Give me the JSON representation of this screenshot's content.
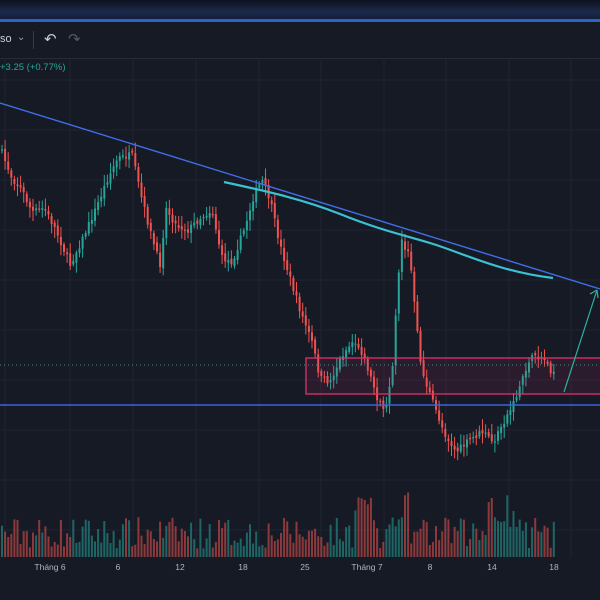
{
  "toolbar": {
    "symbol_fragment": "so",
    "symbol_chevron": "chevron-down-icon",
    "undo_icon": "undo-icon",
    "redo_icon": "redo-icon"
  },
  "legend": {
    "change": "+3.25 (+0.77%)"
  },
  "xaxis": {
    "labels": [
      "Tháng 6",
      "6",
      "12",
      "18",
      "25",
      "Tháng 7",
      "8",
      "14",
      "18"
    ]
  },
  "colors": {
    "background": "#161a25",
    "up": "#26a69a",
    "down": "#ef5350",
    "trendline": "#3f6ee8",
    "support": "#3d63e0",
    "moving_average": "#3cc1d2",
    "zone": "#e0306a"
  }
}
